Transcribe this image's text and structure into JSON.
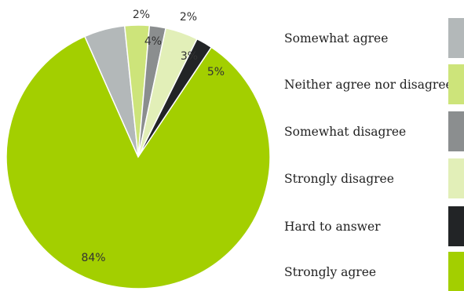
{
  "chart_data": {
    "type": "pie",
    "title": "",
    "slices": [
      {
        "label": "Strongly agree",
        "value": 84,
        "value_label": "84%",
        "color": "#a3cf00"
      },
      {
        "label": "Somewhat agree",
        "value": 5,
        "value_label": "5%",
        "color": "#b3b8b9"
      },
      {
        "label": "Neither agree nor disagree",
        "value": 3,
        "value_label": "3%",
        "color": "#cde47a"
      },
      {
        "label": "Somewhat disagree",
        "value": 2,
        "value_label": "2%",
        "color": "#8b8e8f"
      },
      {
        "label": "Strongly disagree",
        "value": 4,
        "value_label": "4%",
        "color": "#e2efb8"
      },
      {
        "label": "Hard to answer",
        "value": 2,
        "value_label": "2%",
        "color": "#222426"
      }
    ],
    "legend": {
      "placement": "right",
      "order": [
        "Somewhat agree",
        "Neither agree nor disagree",
        "Somewhat disagree",
        "Strongly disagree",
        "Hard to answer",
        "Strongly agree"
      ]
    }
  }
}
